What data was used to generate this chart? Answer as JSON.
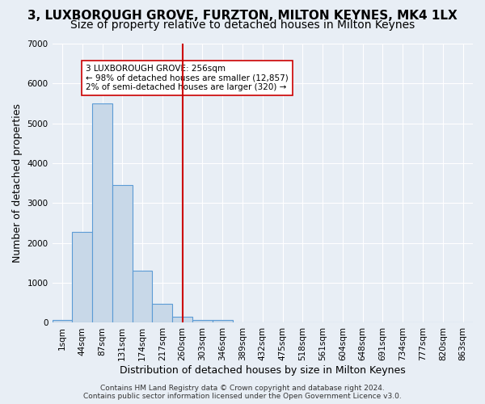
{
  "title": "3, LUXBOROUGH GROVE, FURZTON, MILTON KEYNES, MK4 1LX",
  "subtitle": "Size of property relative to detached houses in Milton Keynes",
  "xlabel": "Distribution of detached houses by size in Milton Keynes",
  "ylabel": "Number of detached properties",
  "bin_labels": [
    "1sqm",
    "44sqm",
    "87sqm",
    "131sqm",
    "174sqm",
    "217sqm",
    "260sqm",
    "303sqm",
    "346sqm",
    "389sqm",
    "432sqm",
    "475sqm",
    "518sqm",
    "561sqm",
    "604sqm",
    "648sqm",
    "691sqm",
    "734sqm",
    "777sqm",
    "820sqm",
    "863sqm"
  ],
  "bar_heights": [
    75,
    2270,
    5500,
    3450,
    1310,
    470,
    150,
    80,
    75,
    0,
    0,
    0,
    0,
    0,
    0,
    0,
    0,
    0,
    0,
    0,
    0
  ],
  "bar_color": "#c8d8e8",
  "bar_edge_color": "#5b9bd5",
  "red_line_x": 6,
  "red_line_color": "#cc0000",
  "annotation_text": "3 LUXBOROUGH GROVE: 256sqm\n← 98% of detached houses are smaller (12,857)\n2% of semi-detached houses are larger (320) →",
  "annotation_box_color": "#ffffff",
  "annotation_box_edge": "#cc0000",
  "ylim": [
    0,
    7000
  ],
  "yticks": [
    0,
    1000,
    2000,
    3000,
    4000,
    5000,
    6000,
    7000
  ],
  "background_color": "#e8eef5",
  "grid_color": "#ffffff",
  "footer": "Contains HM Land Registry data © Crown copyright and database right 2024.\nContains public sector information licensed under the Open Government Licence v3.0.",
  "title_fontsize": 11,
  "subtitle_fontsize": 10,
  "xlabel_fontsize": 9,
  "ylabel_fontsize": 9,
  "tick_fontsize": 7.5,
  "footer_fontsize": 6.5
}
